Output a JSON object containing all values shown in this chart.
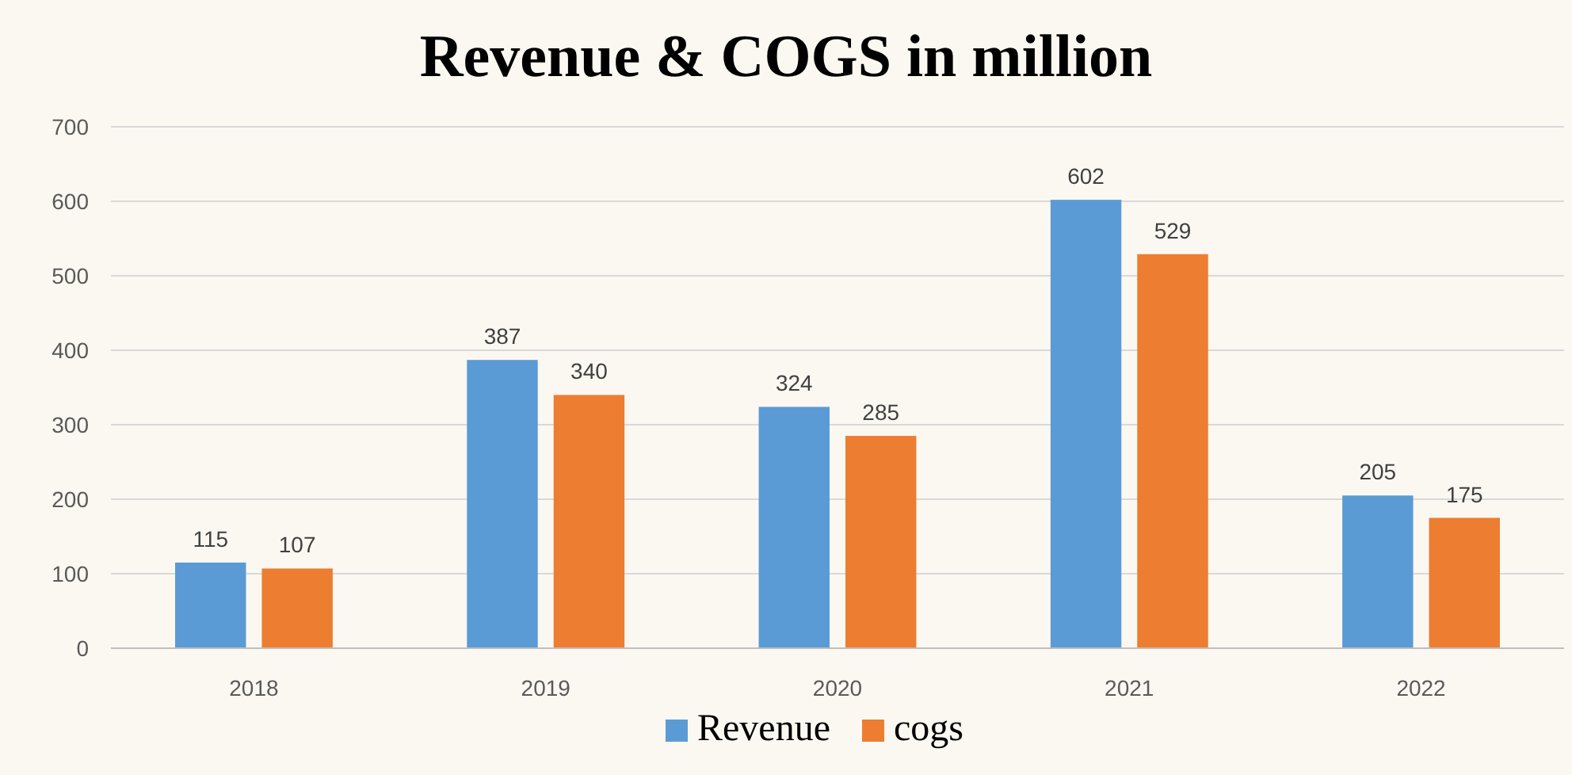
{
  "chart_data": {
    "type": "bar",
    "title": "Revenue & COGS  in million",
    "categories": [
      "2018",
      "2019",
      "2020",
      "2021",
      "2022"
    ],
    "series": [
      {
        "name": "Revenue",
        "color": "#5b9bd5",
        "values": [
          115,
          387,
          324,
          602,
          205
        ]
      },
      {
        "name": "cogs",
        "color": "#ed7d31",
        "values": [
          107,
          340,
          285,
          529,
          175
        ]
      }
    ],
    "ylim": [
      0,
      700
    ],
    "yticks": [
      0,
      100,
      200,
      300,
      400,
      500,
      600,
      700
    ],
    "grid": "y",
    "legend": "bottom",
    "data_labels": true
  }
}
